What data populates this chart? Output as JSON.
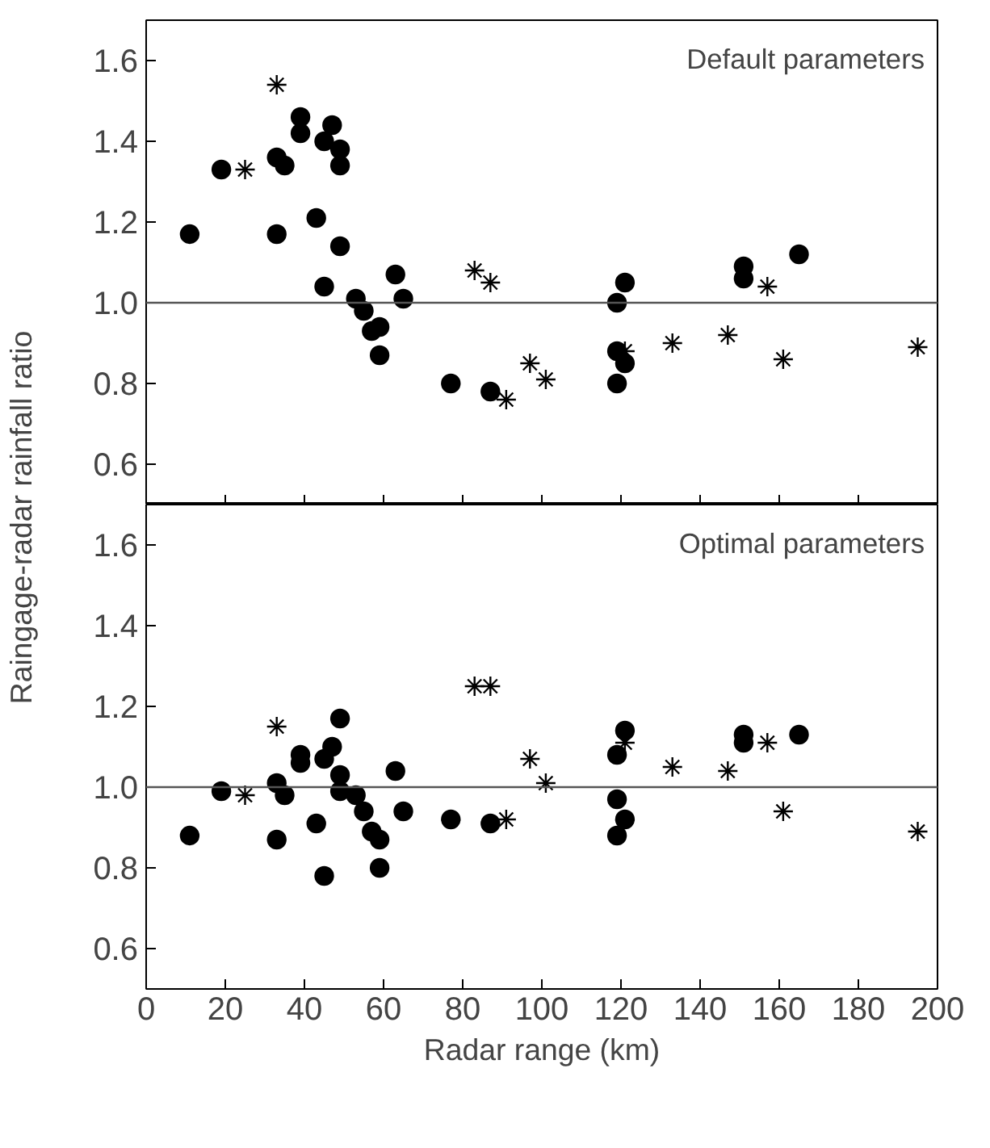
{
  "chart_data": [
    {
      "type": "scatter",
      "ylabel": "Raingage-radar rainfall ratio",
      "annotations": [
        "Default parameters"
      ],
      "xlim": [
        0,
        200
      ],
      "xticks": [
        0,
        20,
        40,
        60,
        80,
        100,
        120,
        140,
        160,
        180,
        200
      ],
      "ylim": [
        0.5,
        1.7
      ],
      "yticks": [
        0.6,
        0.8,
        {
          "value": 1.0,
          "label": "1.0"
        },
        1.2,
        1.4,
        1.6
      ],
      "tick_labels": "y",
      "grid": false,
      "ref_lines": [
        {
          "axis": "y",
          "value": 1.0,
          "color": "#555555"
        }
      ],
      "series": [
        {
          "marker": "circle",
          "color": "#000000",
          "x": [
            11,
            19,
            33,
            35,
            33,
            39,
            39,
            47,
            45,
            49,
            49,
            43,
            49,
            45,
            63,
            65,
            53,
            55,
            57,
            59,
            59,
            77,
            87,
            119,
            121,
            119,
            121,
            119,
            151,
            151,
            165
          ],
          "values": [
            1.17,
            1.33,
            1.36,
            1.34,
            1.17,
            1.46,
            1.42,
            1.44,
            1.4,
            1.38,
            1.34,
            1.21,
            1.14,
            1.04,
            1.07,
            1.01,
            1.01,
            0.98,
            0.93,
            0.94,
            0.87,
            0.8,
            0.78,
            1.0,
            1.05,
            0.88,
            0.85,
            0.8,
            1.09,
            1.06,
            1.12
          ]
        },
        {
          "marker": "cross",
          "color": "#000000",
          "x": [
            33,
            25,
            83,
            87,
            91,
            97,
            101,
            121,
            133,
            147,
            157,
            161,
            195
          ],
          "values": [
            1.54,
            1.33,
            1.08,
            1.05,
            0.76,
            0.85,
            0.81,
            0.88,
            0.9,
            0.92,
            1.04,
            0.86,
            0.89
          ]
        }
      ]
    },
    {
      "type": "scatter",
      "xlabel": "Radar range (km)",
      "annotations": [
        "Optimal parameters"
      ],
      "xlim": [
        0,
        200
      ],
      "xticks": [
        0,
        20,
        40,
        60,
        80,
        100,
        120,
        140,
        160,
        180,
        200
      ],
      "ylim": [
        0.5,
        1.7
      ],
      "yticks": [
        0.6,
        0.8,
        {
          "value": 1.0,
          "label": "1.0"
        },
        1.2,
        1.4,
        1.6
      ],
      "grid": false,
      "ref_lines": [
        {
          "axis": "y",
          "value": 1.0,
          "color": "#555555"
        }
      ],
      "series": [
        {
          "marker": "circle",
          "color": "#000000",
          "x": [
            11,
            19,
            33,
            35,
            33,
            39,
            39,
            47,
            45,
            49,
            49,
            49,
            43,
            45,
            53,
            55,
            57,
            59,
            59,
            63,
            65,
            77,
            87,
            119,
            121,
            119,
            119,
            121,
            151,
            151,
            165
          ],
          "values": [
            0.88,
            0.99,
            1.01,
            0.98,
            0.87,
            1.08,
            1.06,
            1.1,
            1.07,
            1.17,
            1.03,
            0.99,
            0.91,
            0.78,
            0.98,
            0.94,
            0.89,
            0.87,
            0.8,
            1.04,
            0.94,
            0.92,
            0.91,
            0.97,
            0.92,
            0.88,
            1.08,
            1.14,
            1.13,
            1.11,
            1.13
          ]
        },
        {
          "marker": "cross",
          "color": "#000000",
          "x": [
            33,
            25,
            83,
            87,
            91,
            97,
            101,
            121,
            133,
            147,
            157,
            161,
            195
          ],
          "values": [
            1.15,
            0.98,
            1.25,
            1.25,
            0.92,
            1.07,
            1.01,
            1.11,
            1.05,
            1.04,
            1.11,
            0.94,
            0.89
          ]
        }
      ]
    }
  ]
}
